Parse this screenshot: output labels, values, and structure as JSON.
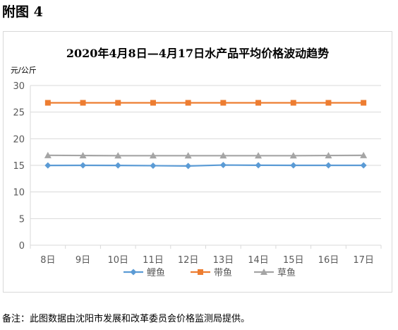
{
  "figure_label": "附图 4",
  "note": "备注：此图数据由沈阳市发展和改革委员会价格监测局提供。",
  "colors": {
    "carp": "#5b9bd5",
    "hairtail": "#ed7d31",
    "grass_carp": "#a5a5a5",
    "grid": "#d9d9d9",
    "axis_text": "#595959"
  },
  "chart_data": {
    "type": "line",
    "title": "2020年4月8日—4月17日水产品平均价格波动趋势",
    "ylabel": "元/公斤",
    "xlabel": "",
    "categories": [
      "8日",
      "9日",
      "10日",
      "11日",
      "12日",
      "13日",
      "14日",
      "15日",
      "16日",
      "17日"
    ],
    "ylim": [
      0,
      30
    ],
    "yticks": [
      "0",
      "5",
      "10",
      "15",
      "20",
      "25",
      "30"
    ],
    "grid": true,
    "legend_position": "bottom",
    "series": [
      {
        "name": "鲤鱼",
        "marker": "diamond",
        "color": "#5b9bd5",
        "values": [
          14.98,
          15.0,
          14.98,
          14.94,
          14.88,
          15.06,
          15.02,
          15.0,
          15.0,
          15.0
        ]
      },
      {
        "name": "带鱼",
        "marker": "square",
        "color": "#ed7d31",
        "values": [
          26.75,
          26.75,
          26.75,
          26.75,
          26.75,
          26.75,
          26.75,
          26.75,
          26.75,
          26.75
        ]
      },
      {
        "name": "草鱼",
        "marker": "triangle",
        "color": "#a5a5a5",
        "values": [
          16.88,
          16.85,
          16.82,
          16.82,
          16.82,
          16.82,
          16.82,
          16.82,
          16.85,
          16.88
        ]
      }
    ]
  }
}
